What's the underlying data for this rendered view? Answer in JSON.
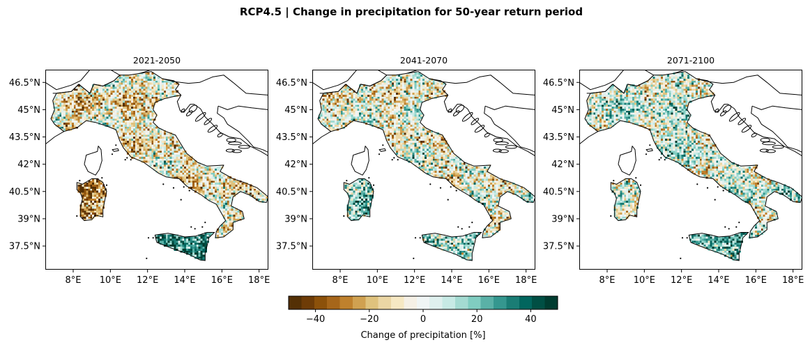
{
  "figure": {
    "title": "RCP4.5 | Change in precipitation for 50-year return period"
  },
  "panels": [
    {
      "title": "2021-2050",
      "bias": -8,
      "sardinia_bias": -25,
      "sicily_bias": 30
    },
    {
      "title": "2041-2070",
      "bias": -3,
      "sardinia_bias": 10,
      "sicily_bias": 10
    },
    {
      "title": "2071-2100",
      "bias": 4,
      "sardinia_bias": -5,
      "sicily_bias": 20
    }
  ],
  "map": {
    "lon_range": [
      6.5,
      18.5
    ],
    "lat_range": [
      36.2,
      47.2
    ],
    "lon_ticks": [
      "8°E",
      "10°E",
      "12°E",
      "14°E",
      "16°E",
      "18°E"
    ],
    "lon_tick_values": [
      8,
      10,
      12,
      14,
      16,
      18
    ],
    "lat_ticks": [
      "46.5°N",
      "45°N",
      "43.5°N",
      "42°N",
      "40.5°N",
      "39°N",
      "37.5°N"
    ],
    "lat_tick_values": [
      46.5,
      45,
      43.5,
      42,
      40.5,
      39,
      37.5
    ]
  },
  "colorbar": {
    "label": "Change of precipitation [%]",
    "min": -50,
    "max": 50,
    "ticks": [
      -40,
      -20,
      0,
      20,
      40
    ],
    "tick_labels": [
      "−40",
      "−20",
      "0",
      "20",
      "40"
    ],
    "colors": [
      "#543005",
      "#6e3c07",
      "#8c510a",
      "#a6661a",
      "#bf812d",
      "#d0a151",
      "#dfc27d",
      "#ebd6a4",
      "#f6e8c3",
      "#f5f0e6",
      "#f0f5f5",
      "#dff0ee",
      "#c7eae5",
      "#a4dbd2",
      "#80cdc1",
      "#5ab1a7",
      "#35978f",
      "#1a7d75",
      "#01665e",
      "#004f44",
      "#003c30"
    ]
  }
}
